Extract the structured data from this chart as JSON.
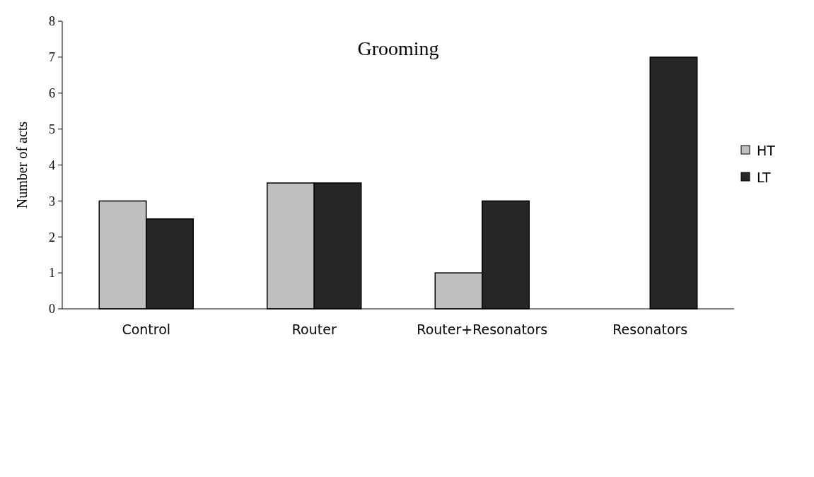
{
  "chart_data": {
    "type": "bar",
    "title": "Grooming",
    "ylabel": "Number of acts",
    "categories": [
      "Control",
      "Router",
      "Router+Resonators",
      "Resonators"
    ],
    "series": [
      {
        "name": "HT",
        "color": "#bfbfbf",
        "values": [
          3,
          3.5,
          1,
          null
        ]
      },
      {
        "name": "LT",
        "color": "#262626",
        "values": [
          2.5,
          3.5,
          3,
          7
        ]
      }
    ],
    "ylim": [
      0,
      8
    ],
    "yticks": [
      0,
      1,
      2,
      3,
      4,
      5,
      6,
      7,
      8
    ],
    "grid": false,
    "legend": "right"
  }
}
